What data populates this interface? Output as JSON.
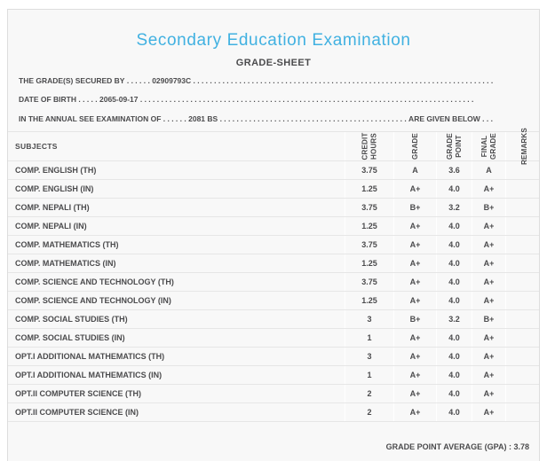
{
  "colors": {
    "accent": "#41b1e1",
    "text": "#4b4b4d"
  },
  "page": {
    "title": "Secondary Education Examination",
    "subtitle": "GRADE-SHEET"
  },
  "meta": {
    "secured_by": {
      "label": "THE GRADE(S) SECURED BY",
      "dots": " . . . . . . ",
      "value": "02909793C",
      "filler": " . . . . . . . . . . . . . . . . . . . . . . . . . . . . . . . . . . . . . . . . . . . . . . . . . . . . . . . . . . . . . . . . . . . . . . . . . . . . . . . ."
    },
    "date_of_birth": {
      "label": "DATE OF BIRTH",
      "dots": " . . . . . ",
      "value": "2065-09-17",
      "filler": " . . . . . . . . . . . . . . . . . . . . . . . . . . . . . . . . . . . . . . . . . . . . . . . . . . . . . . . . . . . . . . . . . . . . . . . . . . . . . . . ."
    },
    "examination": {
      "label": "IN THE ANNUAL SEE EXAMINATION OF",
      "dots": " . . . . . . ",
      "value": "2081 BS",
      "filler": " . . . . . . . . . . . . . . . . . . . . . . . . . . . . . . . . . . . . . . . . . . . . . . . . . .",
      "suffix": " ARE GIVEN BELOW . . ."
    }
  },
  "table": {
    "headers": {
      "subjects": "SUBJECTS",
      "credit_hours": "CREDIT\nHOURS",
      "grade": "GRADE",
      "grade_point": "GRADE\nPOINT",
      "final_grade": "FINAL\nGRADE",
      "remarks": "REMARKS"
    },
    "rows": [
      {
        "subject": "COMP. ENGLISH (TH)",
        "credit_hours": "3.75",
        "grade": "A",
        "grade_point": "3.6",
        "final_grade": "A",
        "remarks": ""
      },
      {
        "subject": "COMP. ENGLISH (IN)",
        "credit_hours": "1.25",
        "grade": "A+",
        "grade_point": "4.0",
        "final_grade": "A+",
        "remarks": ""
      },
      {
        "subject": "COMP. NEPALI (TH)",
        "credit_hours": "3.75",
        "grade": "B+",
        "grade_point": "3.2",
        "final_grade": "B+",
        "remarks": ""
      },
      {
        "subject": "COMP. NEPALI (IN)",
        "credit_hours": "1.25",
        "grade": "A+",
        "grade_point": "4.0",
        "final_grade": "A+",
        "remarks": ""
      },
      {
        "subject": "COMP. MATHEMATICS (TH)",
        "credit_hours": "3.75",
        "grade": "A+",
        "grade_point": "4.0",
        "final_grade": "A+",
        "remarks": ""
      },
      {
        "subject": "COMP. MATHEMATICS (IN)",
        "credit_hours": "1.25",
        "grade": "A+",
        "grade_point": "4.0",
        "final_grade": "A+",
        "remarks": ""
      },
      {
        "subject": "COMP. SCIENCE AND TECHNOLOGY (TH)",
        "credit_hours": "3.75",
        "grade": "A+",
        "grade_point": "4.0",
        "final_grade": "A+",
        "remarks": ""
      },
      {
        "subject": "COMP. SCIENCE AND TECHNOLOGY (IN)",
        "credit_hours": "1.25",
        "grade": "A+",
        "grade_point": "4.0",
        "final_grade": "A+",
        "remarks": ""
      },
      {
        "subject": "COMP. SOCIAL STUDIES (TH)",
        "credit_hours": "3",
        "grade": "B+",
        "grade_point": "3.2",
        "final_grade": "B+",
        "remarks": ""
      },
      {
        "subject": "COMP. SOCIAL STUDIES (IN)",
        "credit_hours": "1",
        "grade": "A+",
        "grade_point": "4.0",
        "final_grade": "A+",
        "remarks": ""
      },
      {
        "subject": "OPT.I ADDITIONAL MATHEMATICS (TH)",
        "credit_hours": "3",
        "grade": "A+",
        "grade_point": "4.0",
        "final_grade": "A+",
        "remarks": ""
      },
      {
        "subject": "OPT.I ADDITIONAL MATHEMATICS (IN)",
        "credit_hours": "1",
        "grade": "A+",
        "grade_point": "4.0",
        "final_grade": "A+",
        "remarks": ""
      },
      {
        "subject": "OPT.II COMPUTER SCIENCE (TH)",
        "credit_hours": "2",
        "grade": "A+",
        "grade_point": "4.0",
        "final_grade": "A+",
        "remarks": ""
      },
      {
        "subject": "OPT.II COMPUTER SCIENCE (IN)",
        "credit_hours": "2",
        "grade": "A+",
        "grade_point": "4.0",
        "final_grade": "A+",
        "remarks": ""
      }
    ]
  },
  "footer": {
    "gpa_label": "GRADE POINT AVERAGE (GPA) :",
    "gpa_value": "3.78"
  }
}
